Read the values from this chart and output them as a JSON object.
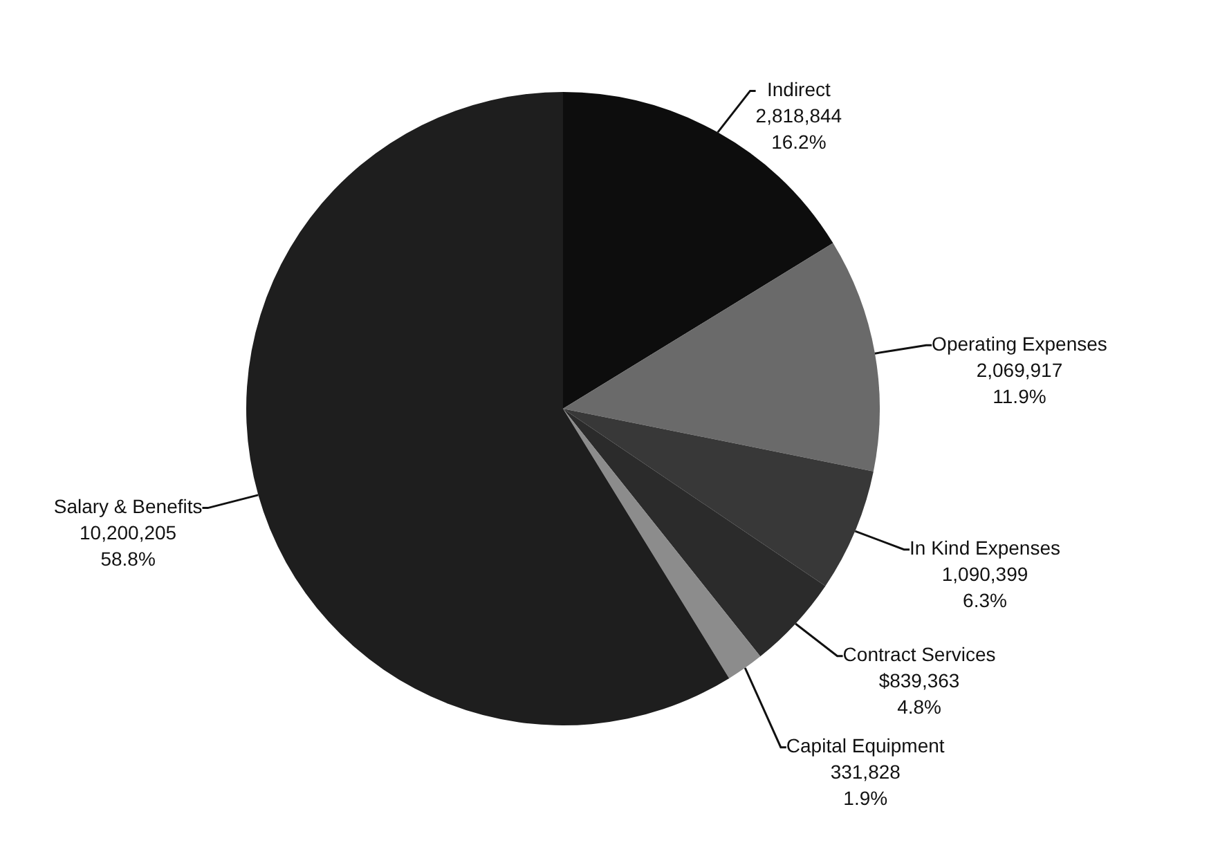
{
  "chart_data": {
    "type": "pie",
    "categories": [
      "Indirect",
      "Operating Expenses",
      "In Kind Expenses",
      "Contract Services",
      "Capital Equipment",
      "Salary & Benefits"
    ],
    "values": [
      2818844,
      2069917,
      1090399,
      839363,
      331828,
      10200205
    ],
    "colors": [
      "#0d0d0d",
      "#6a6a6a",
      "#383838",
      "#2b2b2b",
      "#8c8c8c",
      "#1e1e1e"
    ],
    "value_labels": [
      "2,818,844\n16.2%",
      "2,069,917\n11.9%",
      "1,090,399\n6.3%",
      "$839,363\n4.8%",
      "331,828\n1.9%",
      "10,200,205\n58.8%"
    ],
    "legend": false
  }
}
